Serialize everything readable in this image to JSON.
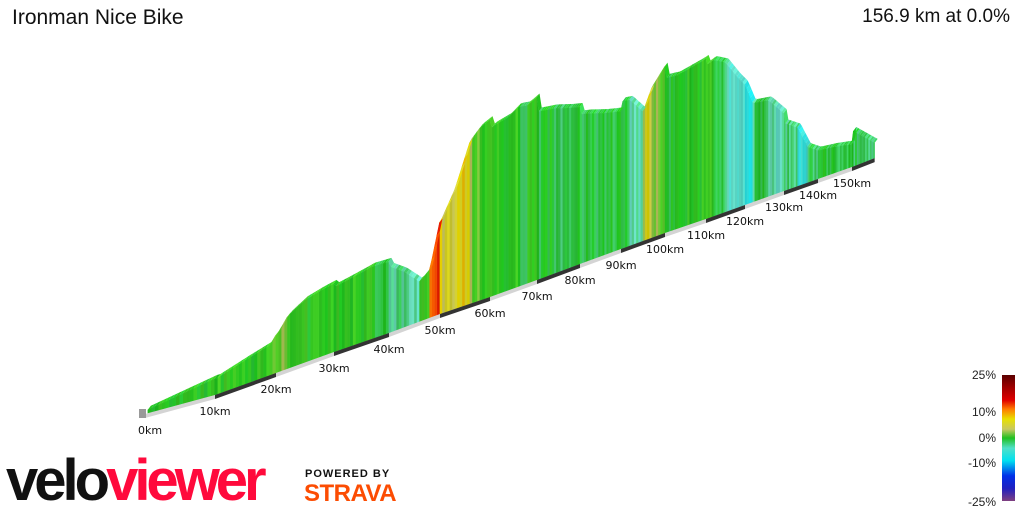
{
  "header": {
    "title": "Ironman Nice Bike",
    "summary": "156.9 km at 0.0%"
  },
  "legend": {
    "labels": [
      "25%",
      "10%",
      "0%",
      "-10%",
      "-25%"
    ]
  },
  "branding": {
    "logo_part1": "velo",
    "logo_part2": "viewer",
    "powered_by": "POWERED BY",
    "strava": "STRAVA",
    "logo_colors": {
      "velo": "#111111",
      "viewer": "#ff0a3c",
      "strava": "#fc4c02"
    }
  },
  "chart_data": {
    "type": "area",
    "style": "3d elevation profile colored by gradient",
    "total_distance_km": 156.9,
    "distance_tick_labels": [
      "0km",
      "10km",
      "20km",
      "30km",
      "40km",
      "50km",
      "60km",
      "70km",
      "80km",
      "90km",
      "100km",
      "110km",
      "120km",
      "130km",
      "140km",
      "150km"
    ],
    "gradient_scale": {
      "min": -25,
      "max": 25,
      "unit": "%"
    },
    "profile": {
      "km": [
        0,
        5,
        10,
        15,
        19,
        20,
        22,
        25,
        28,
        32,
        37,
        40,
        43,
        46,
        48,
        50,
        53,
        56,
        58,
        61,
        64,
        66,
        68,
        70,
        74,
        78,
        82,
        86,
        90,
        92,
        95,
        97,
        100,
        103,
        106,
        109,
        112,
        115,
        118,
        120,
        122,
        126,
        130,
        134,
        137,
        140,
        145,
        150,
        157
      ],
      "elevation_m": [
        0,
        30,
        60,
        100,
        130,
        170,
        250,
        300,
        320,
        340,
        370,
        365,
        300,
        210,
        260,
        520,
        690,
        940,
        1000,
        1040,
        1060,
        1100,
        1090,
        1120,
        1100,
        1060,
        1030,
        990,
        960,
        950,
        840,
        980,
        1090,
        1080,
        1100,
        1120,
        1150,
        1100,
        960,
        880,
        720,
        700,
        560,
        480,
        280,
        220,
        200,
        170,
        60
      ]
    }
  }
}
